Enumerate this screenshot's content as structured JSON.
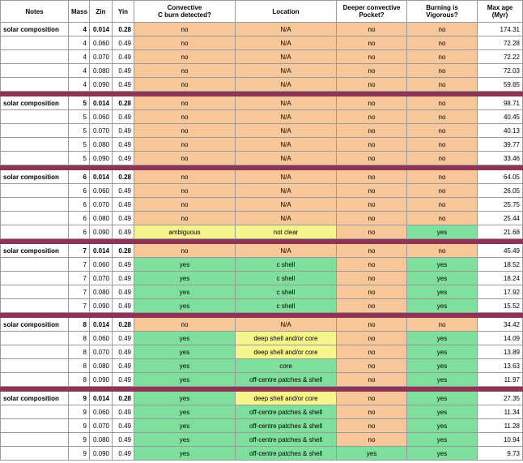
{
  "headers": {
    "notes": "Notes",
    "mass": "Mass",
    "zin": "Zin",
    "yin": "Yin",
    "conv_line1": "Convective",
    "conv_line2": "C burn detected?",
    "location": "Location",
    "deeper_line1": "Deeper convective",
    "deeper_line2": "Pocket?",
    "vig_line1": "Burning is",
    "vig_line2": "Vigorous?",
    "age_line1": "Max age",
    "age_line2": "(Myr)"
  },
  "colors": {
    "orange": "#f7c79a",
    "green": "#7fdf9c",
    "yellow": "#f5f58c",
    "separator": "#8e3556"
  },
  "groups": [
    {
      "rows": [
        {
          "notes": "solar composition",
          "mass": "4",
          "zin": "0.014",
          "yin": "0.28",
          "conv": "no",
          "conv_c": "orange",
          "loc": "N/A",
          "loc_c": "orange",
          "deep": "no",
          "deep_c": "orange",
          "vig": "no",
          "vig_c": "orange",
          "age": "174.31"
        },
        {
          "notes": "",
          "mass": "4",
          "zin": "0.060",
          "yin": "0.49",
          "conv": "no",
          "conv_c": "orange",
          "loc": "N/A",
          "loc_c": "orange",
          "deep": "no",
          "deep_c": "orange",
          "vig": "no",
          "vig_c": "orange",
          "age": "72.28"
        },
        {
          "notes": "",
          "mass": "4",
          "zin": "0.070",
          "yin": "0.49",
          "conv": "no",
          "conv_c": "orange",
          "loc": "N/A",
          "loc_c": "orange",
          "deep": "no",
          "deep_c": "orange",
          "vig": "no",
          "vig_c": "orange",
          "age": "72.22"
        },
        {
          "notes": "",
          "mass": "4",
          "zin": "0.080",
          "yin": "0.49",
          "conv": "no",
          "conv_c": "orange",
          "loc": "N/A",
          "loc_c": "orange",
          "deep": "no",
          "deep_c": "orange",
          "vig": "no",
          "vig_c": "orange",
          "age": "72.03"
        },
        {
          "notes": "",
          "mass": "4",
          "zin": "0.090",
          "yin": "0.49",
          "conv": "no",
          "conv_c": "orange",
          "loc": "N/A",
          "loc_c": "orange",
          "deep": "no",
          "deep_c": "orange",
          "vig": "no",
          "vig_c": "orange",
          "age": "59.65"
        }
      ]
    },
    {
      "rows": [
        {
          "notes": "solar composition",
          "mass": "5",
          "zin": "0.014",
          "yin": "0.28",
          "conv": "no",
          "conv_c": "orange",
          "loc": "N/A",
          "loc_c": "orange",
          "deep": "no",
          "deep_c": "orange",
          "vig": "no",
          "vig_c": "orange",
          "age": "98.71"
        },
        {
          "notes": "",
          "mass": "5",
          "zin": "0.060",
          "yin": "0.49",
          "conv": "no",
          "conv_c": "orange",
          "loc": "N/A",
          "loc_c": "orange",
          "deep": "no",
          "deep_c": "orange",
          "vig": "no",
          "vig_c": "orange",
          "age": "40.45"
        },
        {
          "notes": "",
          "mass": "5",
          "zin": "0.070",
          "yin": "0.49",
          "conv": "no",
          "conv_c": "orange",
          "loc": "N/A",
          "loc_c": "orange",
          "deep": "no",
          "deep_c": "orange",
          "vig": "no",
          "vig_c": "orange",
          "age": "40.13"
        },
        {
          "notes": "",
          "mass": "5",
          "zin": "0.080",
          "yin": "0.49",
          "conv": "no",
          "conv_c": "orange",
          "loc": "N/A",
          "loc_c": "orange",
          "deep": "no",
          "deep_c": "orange",
          "vig": "no",
          "vig_c": "orange",
          "age": "39.77"
        },
        {
          "notes": "",
          "mass": "5",
          "zin": "0.090",
          "yin": "0.49",
          "conv": "no",
          "conv_c": "orange",
          "loc": "N/A",
          "loc_c": "orange",
          "deep": "no",
          "deep_c": "orange",
          "vig": "no",
          "vig_c": "orange",
          "age": "33.46"
        }
      ]
    },
    {
      "rows": [
        {
          "notes": "solar composition",
          "mass": "6",
          "zin": "0.014",
          "yin": "0.28",
          "conv": "no",
          "conv_c": "orange",
          "loc": "N/A",
          "loc_c": "orange",
          "deep": "no",
          "deep_c": "orange",
          "vig": "no",
          "vig_c": "orange",
          "age": "64.05"
        },
        {
          "notes": "",
          "mass": "6",
          "zin": "0.060",
          "yin": "0.49",
          "conv": "no",
          "conv_c": "orange",
          "loc": "N/A",
          "loc_c": "orange",
          "deep": "no",
          "deep_c": "orange",
          "vig": "no",
          "vig_c": "orange",
          "age": "26.05"
        },
        {
          "notes": "",
          "mass": "6",
          "zin": "0.070",
          "yin": "0.49",
          "conv": "no",
          "conv_c": "orange",
          "loc": "N/A",
          "loc_c": "orange",
          "deep": "no",
          "deep_c": "orange",
          "vig": "no",
          "vig_c": "orange",
          "age": "25.75"
        },
        {
          "notes": "",
          "mass": "6",
          "zin": "0.080",
          "yin": "0.49",
          "conv": "no",
          "conv_c": "orange",
          "loc": "N/A",
          "loc_c": "orange",
          "deep": "no",
          "deep_c": "orange",
          "vig": "no",
          "vig_c": "orange",
          "age": "25.44"
        },
        {
          "notes": "",
          "mass": "6",
          "zin": "0.090",
          "yin": "0.49",
          "conv": "ambiguous",
          "conv_c": "yellow",
          "loc": "not clear",
          "loc_c": "yellow",
          "deep": "no",
          "deep_c": "orange",
          "vig": "yes",
          "vig_c": "green",
          "age": "21.68"
        }
      ]
    },
    {
      "rows": [
        {
          "notes": "solar composition",
          "mass": "7",
          "zin": "0.014",
          "yin": "0.28",
          "conv": "no",
          "conv_c": "orange",
          "loc": "N/A",
          "loc_c": "orange",
          "deep": "no",
          "deep_c": "orange",
          "vig": "no",
          "vig_c": "orange",
          "age": "45.49"
        },
        {
          "notes": "",
          "mass": "7",
          "zin": "0.060",
          "yin": "0.49",
          "conv": "yes",
          "conv_c": "green",
          "loc": "c shell",
          "loc_c": "green",
          "deep": "no",
          "deep_c": "orange",
          "vig": "yes",
          "vig_c": "green",
          "age": "18.52"
        },
        {
          "notes": "",
          "mass": "7",
          "zin": "0.070",
          "yin": "0.49",
          "conv": "yes",
          "conv_c": "green",
          "loc": "c shell",
          "loc_c": "green",
          "deep": "no",
          "deep_c": "orange",
          "vig": "yes",
          "vig_c": "green",
          "age": "18.24"
        },
        {
          "notes": "",
          "mass": "7",
          "zin": "0.080",
          "yin": "0.49",
          "conv": "yes",
          "conv_c": "green",
          "loc": "c shell",
          "loc_c": "green",
          "deep": "no",
          "deep_c": "orange",
          "vig": "yes",
          "vig_c": "green",
          "age": "17.92"
        },
        {
          "notes": "",
          "mass": "7",
          "zin": "0.090",
          "yin": "0.49",
          "conv": "yes",
          "conv_c": "green",
          "loc": "c shell",
          "loc_c": "green",
          "deep": "no",
          "deep_c": "orange",
          "vig": "yes",
          "vig_c": "green",
          "age": "15.52"
        }
      ]
    },
    {
      "rows": [
        {
          "notes": "solar composition",
          "mass": "8",
          "zin": "0.014",
          "yin": "0.28",
          "conv": "no",
          "conv_c": "orange",
          "loc": "N/A",
          "loc_c": "orange",
          "deep": "no",
          "deep_c": "orange",
          "vig": "no",
          "vig_c": "orange",
          "age": "34.42"
        },
        {
          "notes": "",
          "mass": "8",
          "zin": "0.060",
          "yin": "0.49",
          "conv": "yes",
          "conv_c": "green",
          "loc": "deep shell and/or core",
          "loc_c": "yellow",
          "deep": "no",
          "deep_c": "orange",
          "vig": "yes",
          "vig_c": "green",
          "age": "14.09"
        },
        {
          "notes": "",
          "mass": "8",
          "zin": "0.070",
          "yin": "0.49",
          "conv": "yes",
          "conv_c": "green",
          "loc": "deep shell and/or core",
          "loc_c": "yellow",
          "deep": "no",
          "deep_c": "orange",
          "vig": "yes",
          "vig_c": "green",
          "age": "13.89"
        },
        {
          "notes": "",
          "mass": "8",
          "zin": "0.080",
          "yin": "0.49",
          "conv": "yes",
          "conv_c": "green",
          "loc": "core",
          "loc_c": "green",
          "deep": "no",
          "deep_c": "orange",
          "vig": "yes",
          "vig_c": "green",
          "age": "13.63"
        },
        {
          "notes": "",
          "mass": "8",
          "zin": "0.090",
          "yin": "0.49",
          "conv": "yes",
          "conv_c": "green",
          "loc": "off-centre patches & shell",
          "loc_c": "green",
          "deep": "no",
          "deep_c": "orange",
          "vig": "yes",
          "vig_c": "green",
          "age": "11.97"
        }
      ]
    },
    {
      "rows": [
        {
          "notes": "solar composition",
          "mass": "9",
          "zin": "0.014",
          "yin": "0.28",
          "conv": "yes",
          "conv_c": "green",
          "loc": "deep shell and/or core",
          "loc_c": "yellow",
          "deep": "no",
          "deep_c": "orange",
          "vig": "yes",
          "vig_c": "green",
          "age": "27.35"
        },
        {
          "notes": "",
          "mass": "9",
          "zin": "0.060",
          "yin": "0.49",
          "conv": "yes",
          "conv_c": "green",
          "loc": "off-centre patches & shell",
          "loc_c": "green",
          "deep": "no",
          "deep_c": "orange",
          "vig": "yes",
          "vig_c": "green",
          "age": "11.34"
        },
        {
          "notes": "",
          "mass": "9",
          "zin": "0.070",
          "yin": "0.49",
          "conv": "yes",
          "conv_c": "green",
          "loc": "off-centre patches & shell",
          "loc_c": "green",
          "deep": "no",
          "deep_c": "orange",
          "vig": "yes",
          "vig_c": "green",
          "age": "11.28"
        },
        {
          "notes": "",
          "mass": "9",
          "zin": "0.080",
          "yin": "0.49",
          "conv": "yes",
          "conv_c": "green",
          "loc": "off-centre patches & shell",
          "loc_c": "green",
          "deep": "no",
          "deep_c": "orange",
          "vig": "yes",
          "vig_c": "green",
          "age": "10.94"
        },
        {
          "notes": "",
          "mass": "9",
          "zin": "0.090",
          "yin": "0.49",
          "conv": "yes",
          "conv_c": "green",
          "loc": "off-centre patches & shell",
          "loc_c": "green",
          "deep": "yes",
          "deep_c": "green",
          "vig": "yes",
          "vig_c": "green",
          "age": "9.73"
        }
      ]
    }
  ]
}
